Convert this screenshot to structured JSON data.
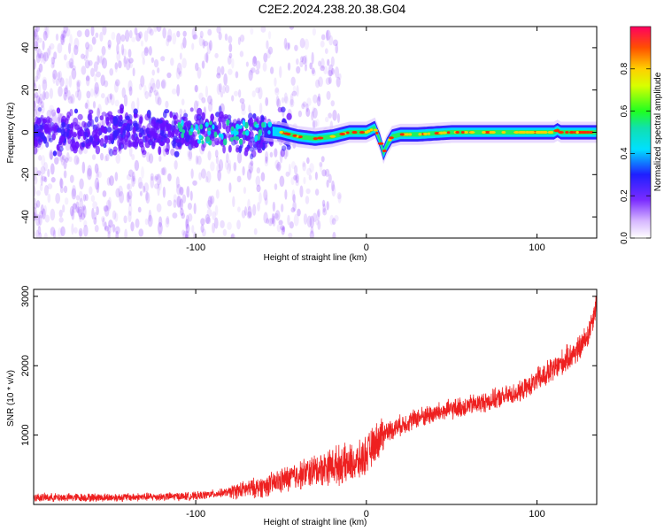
{
  "title": "C2E2.2024.238.20.38.G04",
  "chart_data": [
    {
      "type": "heatmap",
      "xlabel": "Height of straight line (km)",
      "ylabel": "Frequency (Hz)",
      "xlim": [
        -195,
        135
      ],
      "ylim": [
        -50,
        50
      ],
      "xticks": [
        -100,
        0,
        100
      ],
      "yticks": [
        -40,
        -20,
        0,
        20,
        40
      ],
      "colorbar": {
        "label": "Normalized spectral amplitude",
        "range": [
          0,
          1
        ],
        "ticks": [
          "0.0",
          "0.2",
          "0.4",
          "0.6",
          "0.8"
        ]
      },
      "ridge": {
        "x": [
          -195,
          -160,
          -120,
          -90,
          -70,
          -60,
          -50,
          -40,
          -30,
          -20,
          -10,
          0,
          5,
          8,
          10,
          12,
          15,
          20,
          30,
          50,
          80,
          110,
          112,
          114,
          135
        ],
        "y": [
          0,
          0,
          0,
          0,
          0,
          1,
          0,
          -2,
          -3,
          -2,
          0,
          0,
          2,
          -4,
          -10,
          -6,
          -2,
          -1,
          -1,
          0,
          0,
          0,
          1,
          0,
          0
        ]
      }
    },
    {
      "type": "line",
      "xlabel": "Height of straight line (km)",
      "ylabel": "SNR (10 * v/v)",
      "xlim": [
        -195,
        135
      ],
      "ylim": [
        0,
        3100
      ],
      "xticks": [
        -100,
        0,
        100
      ],
      "yticks": [
        1000,
        2000,
        3000
      ],
      "color": "#ee2020",
      "trend": {
        "x": [
          -195,
          -150,
          -100,
          -80,
          -60,
          -40,
          -20,
          -5,
          0,
          10,
          30,
          50,
          70,
          90,
          110,
          125,
          130,
          135
        ],
        "y": [
          100,
          100,
          120,
          180,
          260,
          420,
          560,
          600,
          720,
          1030,
          1250,
          1370,
          1480,
          1620,
          1950,
          2250,
          2450,
          2900
        ]
      }
    }
  ]
}
